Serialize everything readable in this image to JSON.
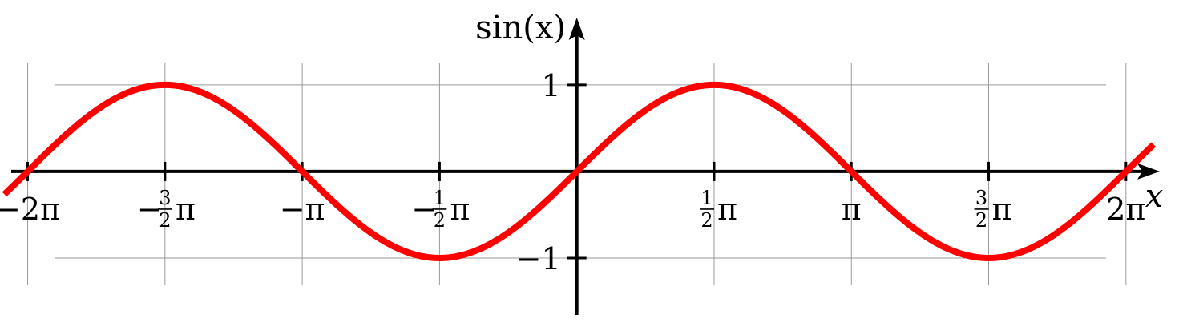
{
  "chart_data": {
    "type": "line",
    "function": "sin(x)",
    "xlabel": "x",
    "ylabel": "sin(x)",
    "xlim": [
      -6.6,
      6.89
    ],
    "ylim": [
      -1.75,
      1.98
    ],
    "grid": true,
    "x_ticks": [
      {
        "value": -6.2832,
        "sign": "−",
        "num": "",
        "den": "",
        "coef": "2",
        "sym": "π"
      },
      {
        "value": -4.7124,
        "sign": "−",
        "num": "3",
        "den": "2",
        "coef": "",
        "sym": "π"
      },
      {
        "value": -3.1416,
        "sign": "−",
        "num": "",
        "den": "",
        "coef": "",
        "sym": "π"
      },
      {
        "value": -1.5708,
        "sign": "−",
        "num": "1",
        "den": "2",
        "coef": "",
        "sym": "π"
      },
      {
        "value": 1.5708,
        "sign": "",
        "num": "1",
        "den": "2",
        "coef": "",
        "sym": "π"
      },
      {
        "value": 3.1416,
        "sign": "",
        "num": "",
        "den": "",
        "coef": "",
        "sym": "π"
      },
      {
        "value": 4.7124,
        "sign": "",
        "num": "3",
        "den": "2",
        "coef": "",
        "sym": "π"
      },
      {
        "value": 6.2832,
        "sign": "",
        "num": "",
        "den": "",
        "coef": "2",
        "sym": "π"
      }
    ],
    "y_ticks": [
      {
        "value": 1,
        "label": "1"
      },
      {
        "value": -1,
        "label": "−1"
      }
    ],
    "series": [
      {
        "color": "#ff0000",
        "x_range": [
          -6.55,
          6.6
        ],
        "x": [
          -6.2832,
          -4.7124,
          -3.1416,
          -1.5708,
          0,
          1.5708,
          3.1416,
          4.7124,
          6.2832
        ],
        "y": [
          0,
          1,
          0,
          -1,
          0,
          1,
          0,
          -1,
          0
        ]
      }
    ],
    "colors": {
      "curve": "#ff0000",
      "axes": "#000000",
      "grid": "#9a9a9a"
    }
  }
}
